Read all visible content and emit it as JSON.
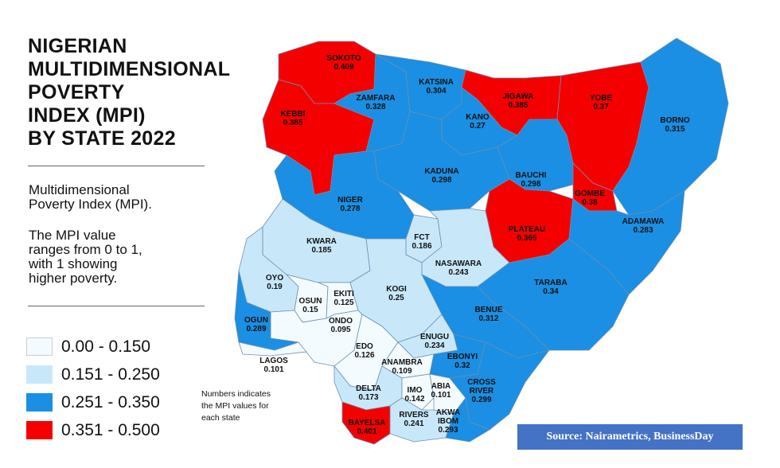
{
  "title_lines": [
    "NIGERIAN",
    "MULTIDIMENSIONAL",
    "POVERTY",
    "INDEX (MPI)",
    "BY STATE 2022"
  ],
  "description": {
    "definition_lines": [
      "Multidimensional",
      "Poverty Index (MPI)."
    ],
    "range_lines": [
      "The MPI value",
      "ranges from 0 to 1,",
      "with 1 showing",
      "higher poverty."
    ]
  },
  "legend": [
    {
      "label": "0.00 - 0.150",
      "color": "#f3fbff",
      "min": 0.0,
      "max": 0.15
    },
    {
      "label": "0.151 - 0.250",
      "color": "#c8e8fa",
      "min": 0.151,
      "max": 0.25
    },
    {
      "label": "0.251 - 0.350",
      "color": "#1a8fe3",
      "min": 0.251,
      "max": 0.35
    },
    {
      "label": "0.351 - 0.500",
      "color": "#f40000",
      "min": 0.351,
      "max": 0.5
    }
  ],
  "note_lines": [
    "Numbers indicates",
    "the MPI values for",
    "each state"
  ],
  "source": "Source: Nairametrics,  BusinessDay",
  "states": [
    {
      "name": "SOKOTO",
      "value": "0.409"
    },
    {
      "name": "KEBBI",
      "value": "0.385"
    },
    {
      "name": "ZAMFARA",
      "value": "0.328"
    },
    {
      "name": "KATSINA",
      "value": "0.304"
    },
    {
      "name": "JIGAWA",
      "value": "0.385"
    },
    {
      "name": "KANO",
      "value": "0.27"
    },
    {
      "name": "YOBE",
      "value": "0.37"
    },
    {
      "name": "BORNO",
      "value": "0.315"
    },
    {
      "name": "KADUNA",
      "value": "0.298"
    },
    {
      "name": "BAUCHI",
      "value": "0.298"
    },
    {
      "name": "GOMBE",
      "value": "0.38"
    },
    {
      "name": "NIGER",
      "value": "0.278"
    },
    {
      "name": "PLATEAU",
      "value": "0.365"
    },
    {
      "name": "ADAMAWA",
      "value": "0.283"
    },
    {
      "name": "FCT",
      "value": "0.186"
    },
    {
      "name": "KWARA",
      "value": "0.185"
    },
    {
      "name": "NASAWARA",
      "value": "0.243"
    },
    {
      "name": "TARABA",
      "value": "0.34"
    },
    {
      "name": "OYO",
      "value": "0.19"
    },
    {
      "name": "OSUN",
      "value": "0.15"
    },
    {
      "name": "EKITI",
      "value": "0.125"
    },
    {
      "name": "KOGI",
      "value": "0.25"
    },
    {
      "name": "BENUE",
      "value": "0.312"
    },
    {
      "name": "ONDO",
      "value": "0.095"
    },
    {
      "name": "OGUN",
      "value": "0.289"
    },
    {
      "name": "LAGOS",
      "value": "0.101"
    },
    {
      "name": "EDO",
      "value": "0.126"
    },
    {
      "name": "ENUGU",
      "value": "0.234"
    },
    {
      "name": "ANAMBRA",
      "value": "0.109"
    },
    {
      "name": "EBONYI",
      "value": "0.32"
    },
    {
      "name": "CROSS RIVER",
      "value": "0.299"
    },
    {
      "name": "DELTA",
      "value": "0.173"
    },
    {
      "name": "IMO",
      "value": "0.142"
    },
    {
      "name": "ABIA",
      "value": "0.101"
    },
    {
      "name": "RIVERS",
      "value": "0.241"
    },
    {
      "name": "BAYELSA",
      "value": "0.401"
    },
    {
      "name": "AKWA IBOM",
      "value": "0.293"
    }
  ]
}
